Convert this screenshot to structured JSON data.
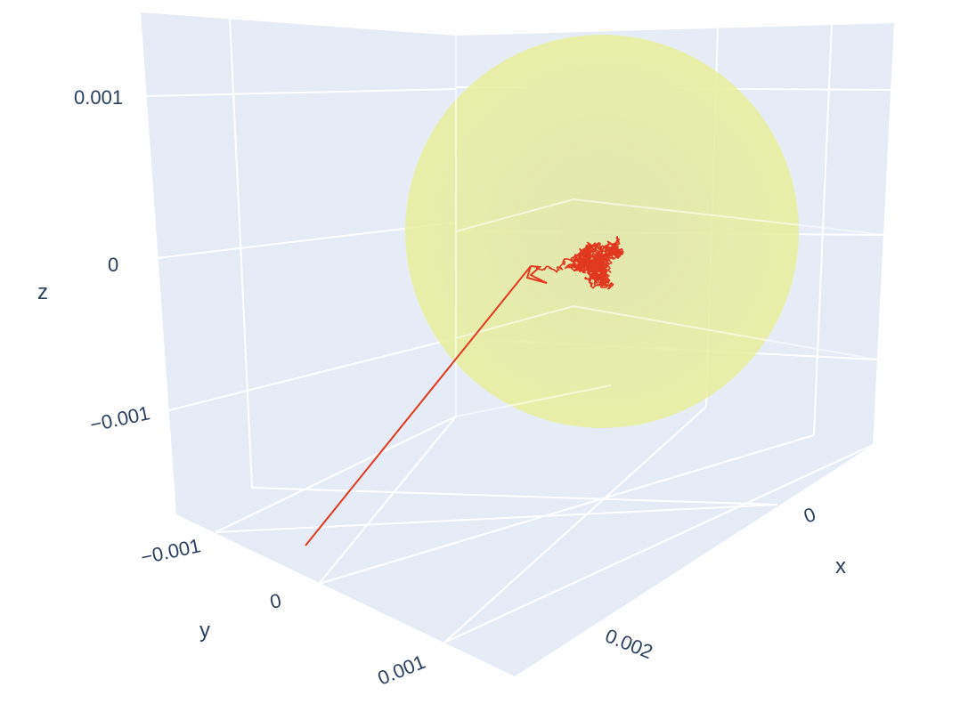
{
  "chart_data": {
    "type": "scatter3d",
    "axes": {
      "x": {
        "title": "x",
        "ticks": [
          {
            "value": 0,
            "label": "0"
          },
          {
            "value": 0.002,
            "label": "0.002"
          }
        ]
      },
      "y": {
        "title": "y",
        "ticks": [
          {
            "value": -0.001,
            "label": "−0.001"
          },
          {
            "value": 0,
            "label": "0"
          },
          {
            "value": 0.001,
            "label": "0.001"
          }
        ]
      },
      "z": {
        "title": "z",
        "ticks": [
          {
            "value": 0.001,
            "label": "0.001"
          },
          {
            "value": 0,
            "label": "0"
          },
          {
            "value": -0.001,
            "label": "−0.001"
          }
        ]
      }
    },
    "grid": true,
    "background": "#e5ecf6",
    "series": [
      {
        "kind": "line",
        "color": "#e1391f",
        "description_points": [
          {
            "x": 0.0003,
            "y": 0.0004,
            "z": -0.0012
          },
          {
            "x": 0.0022,
            "y": -0.0002,
            "z": 0.0
          }
        ],
        "cluster": {
          "center": {
            "x": 0.0023,
            "y": -0.0002,
            "z": 0.0001
          },
          "spread": 0.00015
        }
      },
      {
        "kind": "surface-sphere",
        "color": "#eef18f",
        "opacity": 0.75,
        "center": {
          "x": 0.0023,
          "y": -0.0002,
          "z": 0.0001
        },
        "radius": 0.0011
      }
    ]
  }
}
